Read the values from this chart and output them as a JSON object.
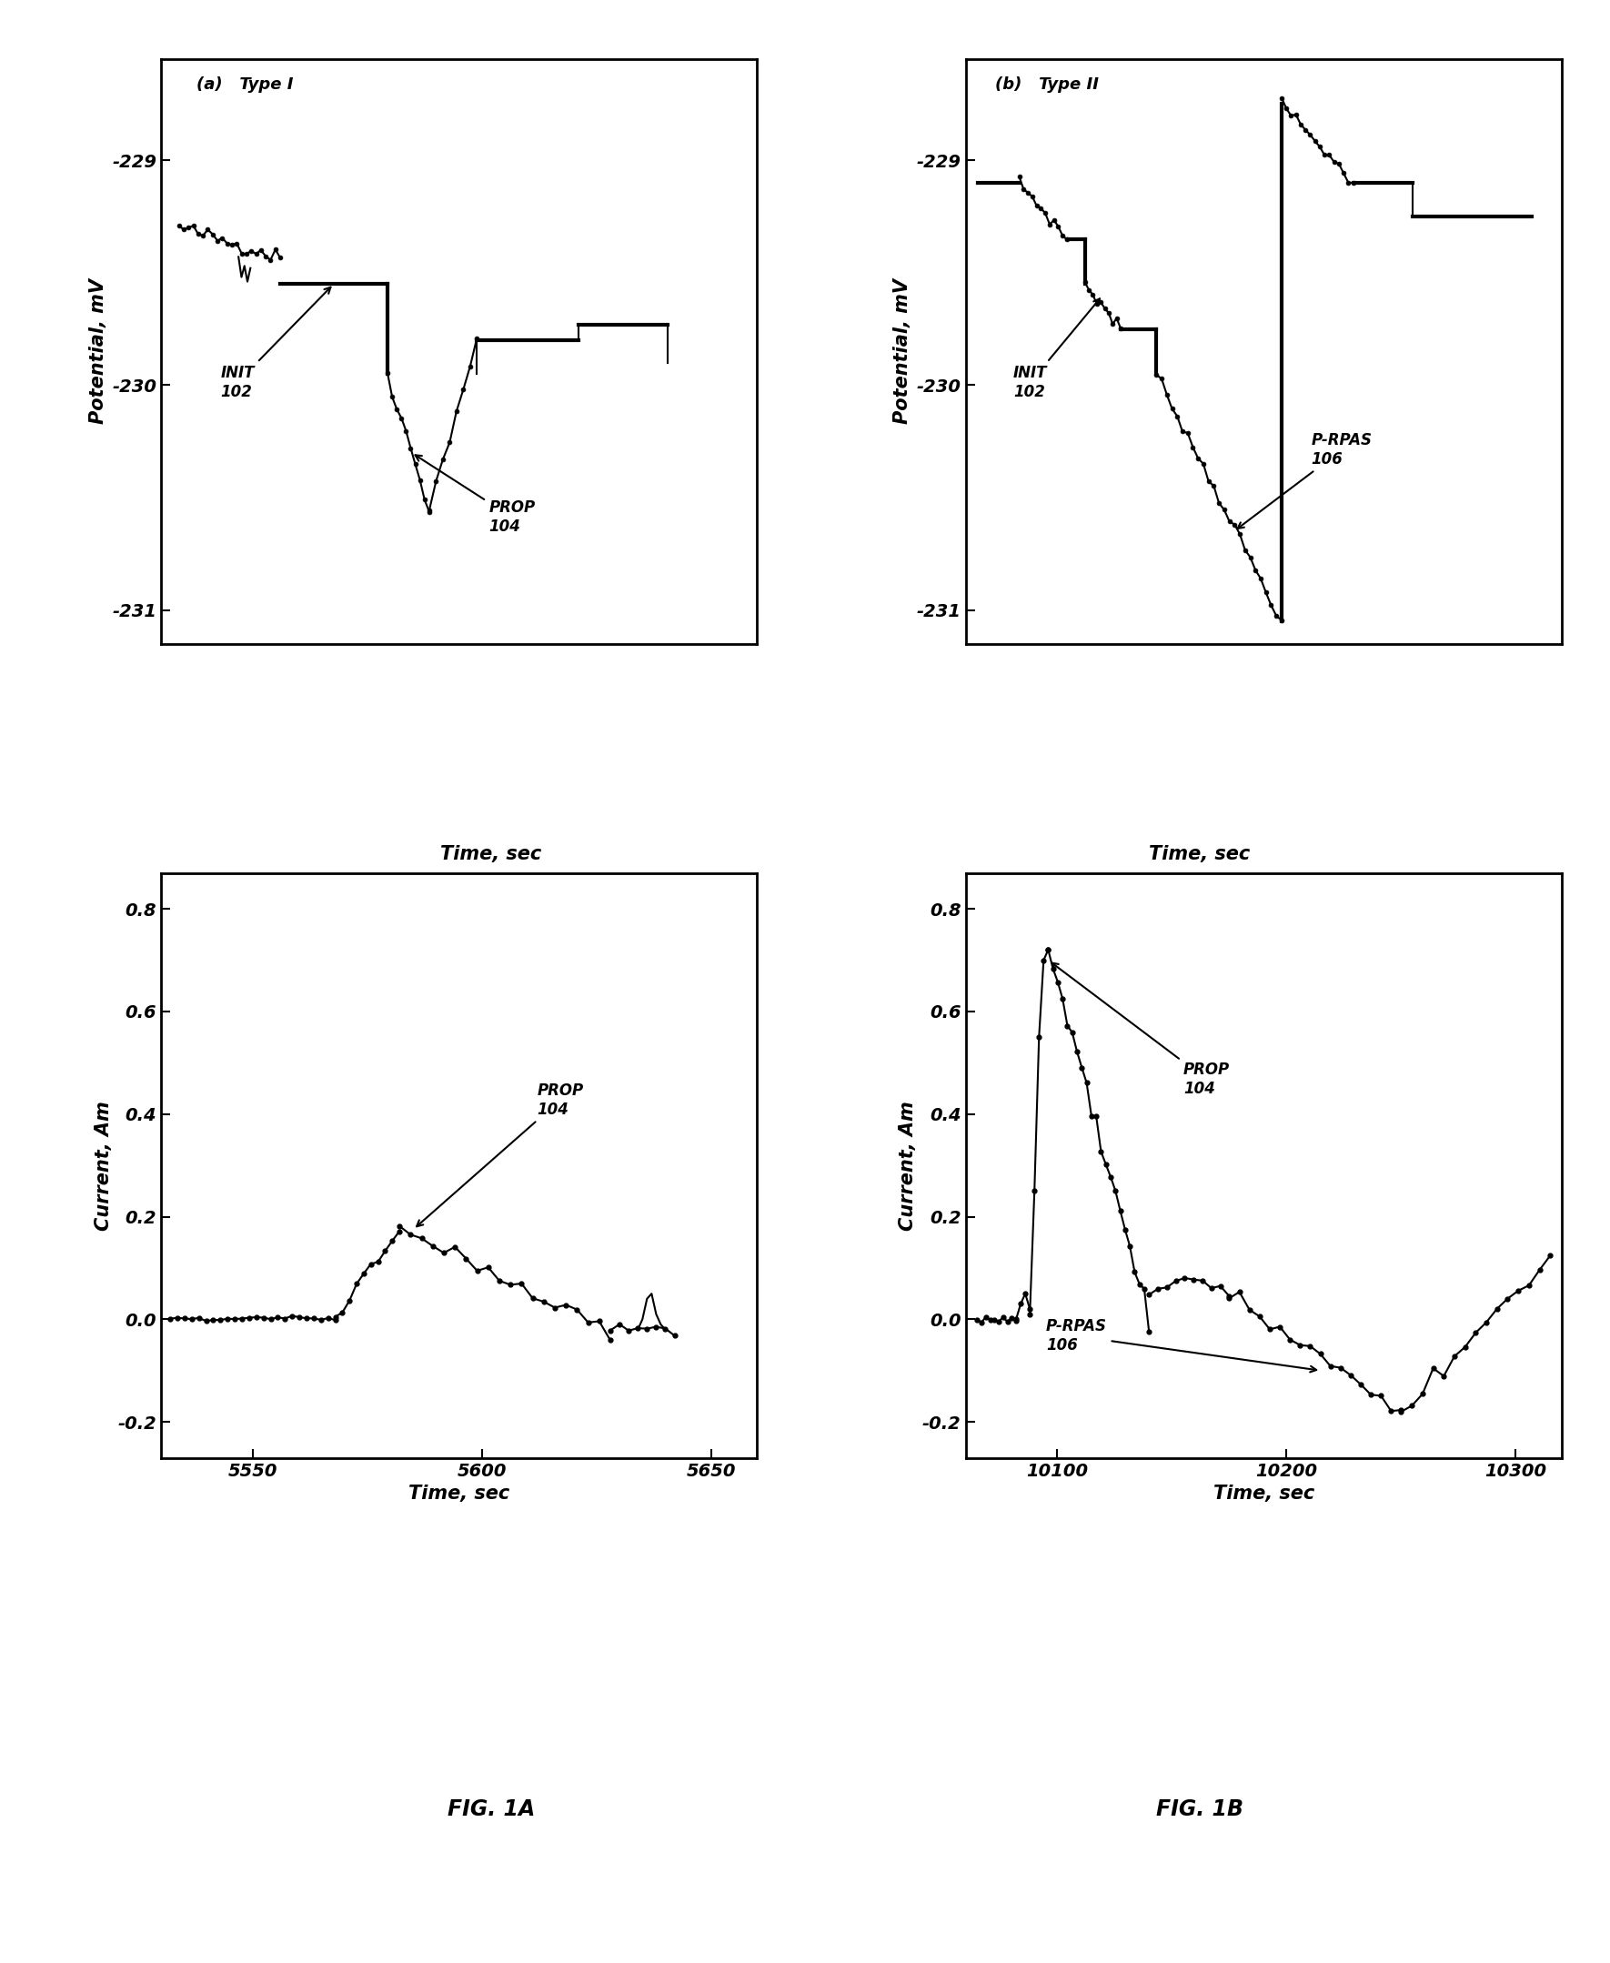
{
  "fig_width": 17.7,
  "fig_height": 21.58,
  "background_color": "#ffffff",
  "line_color": "#000000",
  "marker_color": "#000000",
  "marker_size": 3.5,
  "linewidth_thick": 3.0,
  "linewidth_thin": 1.5,
  "tick_fontsize": 14,
  "label_fontsize": 15,
  "annot_fontsize": 13,
  "panel_a": {
    "title_text": "(a)   Type I",
    "ylabel": "Potential, mV",
    "xlabel": "Time, sec",
    "ylim": [
      -231.15,
      -228.55
    ],
    "yticks": [
      -231,
      -230,
      -229
    ],
    "xlim": [
      0,
      10
    ]
  },
  "panel_b": {
    "title_text": "(b)   Type II",
    "ylabel": "Potential, mV",
    "xlabel": "Time, sec",
    "ylim": [
      -231.15,
      -228.55
    ],
    "yticks": [
      -231,
      -230,
      -229
    ],
    "xlim": [
      0,
      10
    ]
  },
  "panel_c": {
    "ylabel": "Current, Am",
    "xlabel": "Time, sec",
    "ylim": [
      -0.27,
      0.87
    ],
    "yticks": [
      -0.2,
      0.0,
      0.2,
      0.4,
      0.6,
      0.8
    ],
    "xlim": [
      5530,
      5660
    ],
    "xticks": [
      5550,
      5600,
      5650
    ]
  },
  "panel_d": {
    "ylabel": "Current, Am",
    "xlabel": "Time, sec",
    "ylim": [
      -0.27,
      0.87
    ],
    "yticks": [
      -0.2,
      0.0,
      0.2,
      0.4,
      0.6,
      0.8
    ],
    "xlim": [
      10060,
      10320
    ],
    "xticks": [
      10100,
      10200,
      10300
    ]
  },
  "fig1a_label": "FIG. 1A",
  "fig1b_label": "FIG. 1B"
}
